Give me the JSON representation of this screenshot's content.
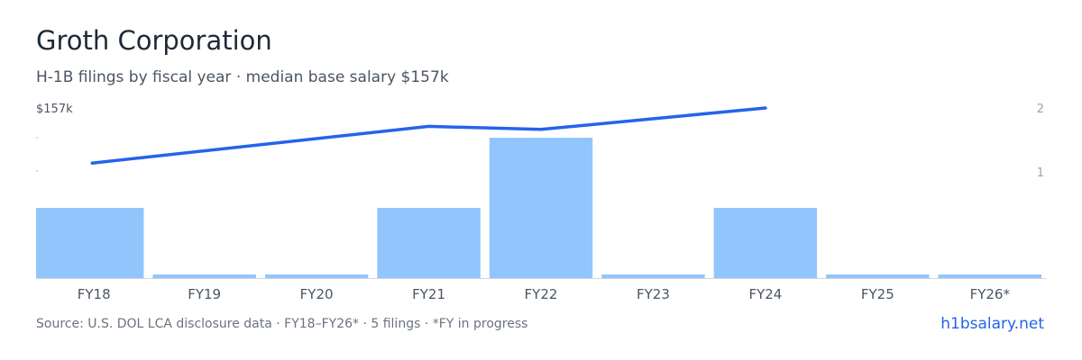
{
  "header": {
    "title": "Groth Corporation",
    "subtitle": "H-1B filings by fiscal year · median base salary $157k"
  },
  "footer": {
    "source": "Source: U.S. DOL LCA disclosure data · FY18–FY26* · 5 filings · *FY in progress",
    "brand": "h1bsalary.net"
  },
  "colors": {
    "bar": "#93c5fd",
    "line": "#2563eb",
    "axis": "#d1d5db",
    "tick_text": "#4b5563",
    "right_tick_text": "#9ca3af"
  },
  "chart_data": {
    "type": "bar",
    "categories": [
      "FY18",
      "FY19",
      "FY20",
      "FY21",
      "FY22",
      "FY23",
      "FY24",
      "FY25",
      "FY26*"
    ],
    "series": [
      {
        "type": "bar",
        "axis": "right",
        "values": [
          1,
          0,
          0,
          1,
          2,
          0,
          1,
          0,
          0
        ]
      },
      {
        "type": "line",
        "axis": "left",
        "values": [
          139,
          null,
          null,
          151,
          150,
          null,
          157,
          null,
          null
        ]
      }
    ],
    "left_axis": {
      "label": "$157k",
      "max": 157
    },
    "right_axis": {
      "ticks": [
        "2",
        "1"
      ],
      "max": 2
    },
    "ylim_right": [
      0,
      2
    ],
    "grid": false,
    "legend": "none"
  }
}
